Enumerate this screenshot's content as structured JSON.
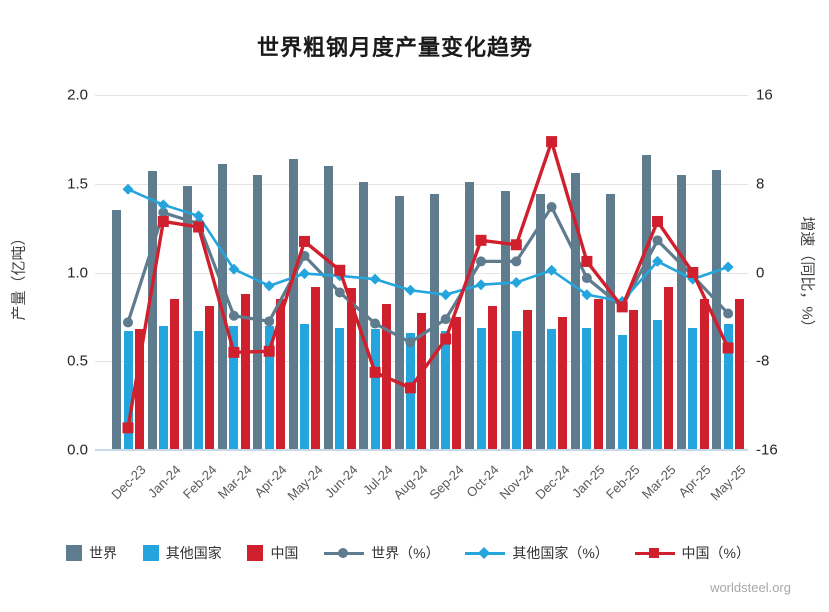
{
  "title": "世界粗钢月度产量变化趋势",
  "footer": "worldsteel.org",
  "colors": {
    "world": "#5e7c8e",
    "others": "#25a5dd",
    "china": "#d0202e",
    "grid": "#e4e4e4",
    "axis_line": "#c7d9e8"
  },
  "legend": {
    "world_bar": "世界",
    "others_bar": "其他国家",
    "china_bar": "中国",
    "world_line": "世界（%）",
    "others_line": "其他国家（%）",
    "china_line": "中国（%）"
  },
  "chart_data": {
    "type": "bar",
    "subtype": "grouped-bars-with-lines-dual-axis",
    "title": "世界粗钢月度产量变化趋势",
    "categories": [
      "Dec-23",
      "Jan-24",
      "Feb-24",
      "Mar-24",
      "Apr-24",
      "May-24",
      "Jun-24",
      "Jul-24",
      "Aug-24",
      "Sep-24",
      "Oct-24",
      "Nov-24",
      "Dec-24",
      "Jan-25",
      "Feb-25",
      "Mar-25",
      "Apr-25",
      "May-25"
    ],
    "bar_series": [
      {
        "name": "世界",
        "axis": "left",
        "color": "#5e7c8e",
        "values": [
          1.35,
          1.57,
          1.49,
          1.61,
          1.55,
          1.64,
          1.6,
          1.51,
          1.43,
          1.44,
          1.51,
          1.46,
          1.44,
          1.56,
          1.44,
          1.66,
          1.55,
          1.58
        ]
      },
      {
        "name": "其他国家",
        "axis": "left",
        "color": "#25a5dd",
        "values": [
          0.67,
          0.7,
          0.67,
          0.7,
          0.7,
          0.71,
          0.69,
          0.68,
          0.66,
          0.67,
          0.69,
          0.67,
          0.68,
          0.69,
          0.65,
          0.73,
          0.69,
          0.71
        ]
      },
      {
        "name": "中国",
        "axis": "left",
        "color": "#d0202e",
        "values": [
          0.68,
          0.85,
          0.81,
          0.88,
          0.85,
          0.92,
          0.91,
          0.82,
          0.77,
          0.75,
          0.81,
          0.79,
          0.75,
          0.85,
          0.79,
          0.92,
          0.85,
          0.85
        ]
      }
    ],
    "line_series": [
      {
        "name": "世界（%）",
        "axis": "right",
        "color": "#5e7c8e",
        "marker": "circle",
        "stroke": 3.2,
        "values": [
          -4.5,
          5.4,
          4.4,
          -3.9,
          -4.4,
          1.5,
          -1.8,
          -4.6,
          -6.3,
          -4.2,
          1.0,
          1.0,
          5.9,
          -0.5,
          -3.1,
          2.9,
          -0.3,
          -3.7
        ]
      },
      {
        "name": "其他国家（%）",
        "axis": "right",
        "color": "#25a5dd",
        "marker": "diamond",
        "stroke": 2.6,
        "values": [
          7.5,
          6.1,
          5.1,
          0.3,
          -1.2,
          -0.1,
          -0.3,
          -0.6,
          -1.6,
          -2.0,
          -1.1,
          -0.9,
          0.2,
          -2.0,
          -2.6,
          1.0,
          -0.6,
          0.5
        ]
      },
      {
        "name": "中国（%）",
        "axis": "right",
        "color": "#d0202e",
        "marker": "square",
        "stroke": 3.4,
        "values": [
          -14.0,
          4.6,
          4.1,
          -7.2,
          -7.1,
          2.8,
          0.2,
          -9.0,
          -10.4,
          -6.0,
          2.9,
          2.5,
          11.8,
          1.0,
          -3.1,
          4.6,
          0.0,
          -6.8
        ]
      }
    ],
    "left_axis": {
      "label": "产量（亿吨）",
      "ticks": [
        "0.0",
        "0.5",
        "1.0",
        "1.5",
        "2.0"
      ],
      "range": [
        0,
        2
      ]
    },
    "right_axis": {
      "label": "增速（同比，%）",
      "ticks": [
        "-16",
        "-8",
        "0",
        "8",
        "16"
      ],
      "range": [
        -16,
        16
      ]
    },
    "grid": true,
    "legend_position": "bottom",
    "source_label": "worldsteel.org"
  }
}
